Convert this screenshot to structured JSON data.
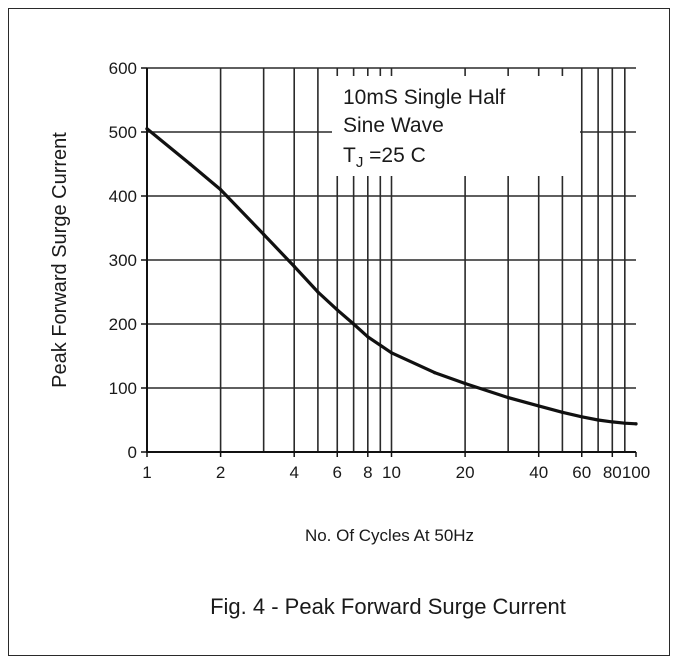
{
  "chart_data": {
    "type": "line",
    "title": "Fig. 4 - Peak Forward Surge Current",
    "xlabel": "No. Of Cycles At 50Hz",
    "ylabel": "Peak Forward Surge Current",
    "x_scale": "log",
    "xlim": [
      1,
      100
    ],
    "ylim": [
      0,
      600
    ],
    "x_ticks": [
      1,
      2,
      4,
      6,
      8,
      10,
      20,
      40,
      60,
      80,
      100
    ],
    "x_tick_labels": [
      "1",
      "2",
      "4",
      "6",
      "8",
      "10",
      "20",
      "40",
      "60",
      "80",
      "100"
    ],
    "y_ticks": [
      0,
      100,
      200,
      300,
      400,
      500,
      600
    ],
    "y_tick_labels": [
      "0",
      "100",
      "200",
      "300",
      "400",
      "500",
      "600"
    ],
    "grid": true,
    "annotation": {
      "lines": [
        "10mS Single Half",
        "Sine Wave"
      ],
      "tj_prefix": "T",
      "tj_sub": "J",
      "tj_suffix": " =25 C"
    },
    "series": [
      {
        "color": "#111111",
        "x": [
          1,
          1.5,
          2,
          3,
          4,
          5,
          6,
          7,
          8,
          10,
          15,
          20,
          30,
          40,
          50,
          60,
          70,
          80,
          90,
          100
        ],
        "y": [
          505,
          450,
          410,
          340,
          290,
          250,
          222,
          200,
          180,
          155,
          124,
          107,
          85,
          72,
          62,
          55,
          50,
          47,
          45,
          44
        ]
      }
    ]
  }
}
